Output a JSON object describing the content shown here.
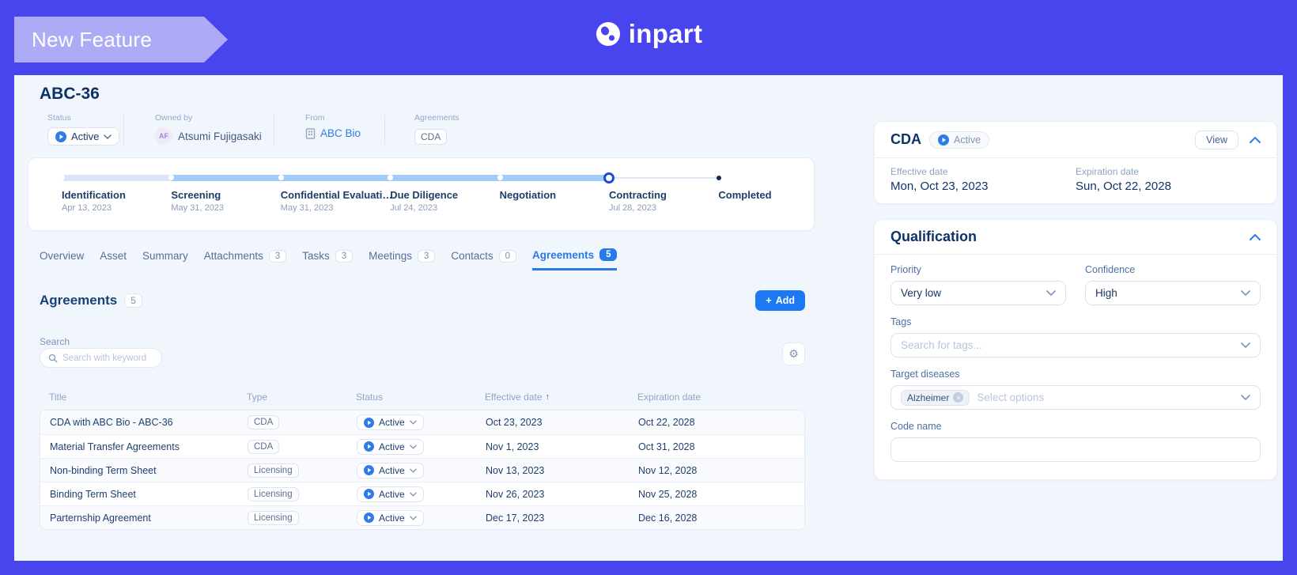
{
  "banner": {
    "ribbon_label": "New Feature",
    "logo_text": "inpart"
  },
  "header": {
    "title": "ABC-36",
    "status": {
      "label": "Status",
      "value": "Active"
    },
    "owned_by": {
      "label": "Owned by",
      "initials": "AF",
      "name": "Atsumi Fujigasaki"
    },
    "from": {
      "label": "From",
      "company": "ABC Bio"
    },
    "agreements": {
      "label": "Agreements",
      "value": "CDA"
    }
  },
  "timeline": {
    "stages": [
      {
        "name": "Identification",
        "date": "Apr 13, 2023",
        "state": "done"
      },
      {
        "name": "Screening",
        "date": "May 31, 2023",
        "state": "done"
      },
      {
        "name": "Confidential Evaluati…",
        "date": "May 31, 2023",
        "state": "done"
      },
      {
        "name": "Due Diligence",
        "date": "Jul 24, 2023",
        "state": "done"
      },
      {
        "name": "Negotiation",
        "date": "",
        "state": "done"
      },
      {
        "name": "Contracting",
        "date": "Jul 28, 2023",
        "state": "current"
      },
      {
        "name": "Completed",
        "date": "",
        "state": "pending"
      }
    ]
  },
  "tabs": [
    {
      "label": "Overview"
    },
    {
      "label": "Asset"
    },
    {
      "label": "Summary"
    },
    {
      "label": "Attachments",
      "count": "3"
    },
    {
      "label": "Tasks",
      "count": "3"
    },
    {
      "label": "Meetings",
      "count": "3"
    },
    {
      "label": "Contacts",
      "count": "0"
    },
    {
      "label": "Agreements",
      "count": "5",
      "active": true
    }
  ],
  "agreements_section": {
    "title": "Agreements",
    "count": "5",
    "add_label": "Add",
    "search_label": "Search",
    "search_placeholder": "Search with keyword",
    "columns": [
      {
        "label": "Title"
      },
      {
        "label": "Type"
      },
      {
        "label": "Status"
      },
      {
        "label": "Effective date",
        "sorted": "asc"
      },
      {
        "label": "Expiration date"
      }
    ],
    "rows": [
      {
        "title": "CDA with ABC Bio - ABC-36",
        "type": "CDA",
        "status": "Active",
        "effective": "Oct 23, 2023",
        "expiration": "Oct 22, 2028"
      },
      {
        "title": "Material Transfer Agreements",
        "type": "CDA",
        "status": "Active",
        "effective": "Nov 1, 2023",
        "expiration": "Oct 31, 2028"
      },
      {
        "title": "Non-binding Term Sheet",
        "type": "Licensing",
        "status": "Active",
        "effective": "Nov 13, 2023",
        "expiration": "Nov 12, 2028"
      },
      {
        "title": "Binding Term Sheet",
        "type": "Licensing",
        "status": "Active",
        "effective": "Nov 26, 2023",
        "expiration": "Nov 25, 2028"
      },
      {
        "title": "Parternship Agreement",
        "type": "Licensing",
        "status": "Active",
        "effective": "Dec 17, 2023",
        "expiration": "Dec 16, 2028"
      }
    ]
  },
  "cda_card": {
    "title": "CDA",
    "status": "Active",
    "view_label": "View",
    "effective": {
      "label": "Effective date",
      "value": "Mon, Oct 23, 2023"
    },
    "expiration": {
      "label": "Expiration date",
      "value": "Sun, Oct 22, 2028"
    }
  },
  "qualification": {
    "title": "Qualification",
    "priority": {
      "label": "Priority",
      "value": "Very low"
    },
    "confidence": {
      "label": "Confidence",
      "value": "High"
    },
    "tags": {
      "label": "Tags",
      "placeholder": "Search for tags..."
    },
    "target_diseases": {
      "label": "Target diseases",
      "chip": "Alzheimer",
      "placeholder": "Select options"
    },
    "code_name": {
      "label": "Code name",
      "value": ""
    }
  },
  "colors": {
    "frame": "#4845EE",
    "ribbon": "#ADABF5",
    "content_bg": "#F1F6FD",
    "accent_blue": "#2879E9",
    "navy": "#0F3168",
    "timeline_done_light": "#DBE3F7",
    "timeline_done": "#A2CCF9",
    "timeline_ring": "#1A4FD0",
    "timeline_pending_dot": "#16294E"
  }
}
